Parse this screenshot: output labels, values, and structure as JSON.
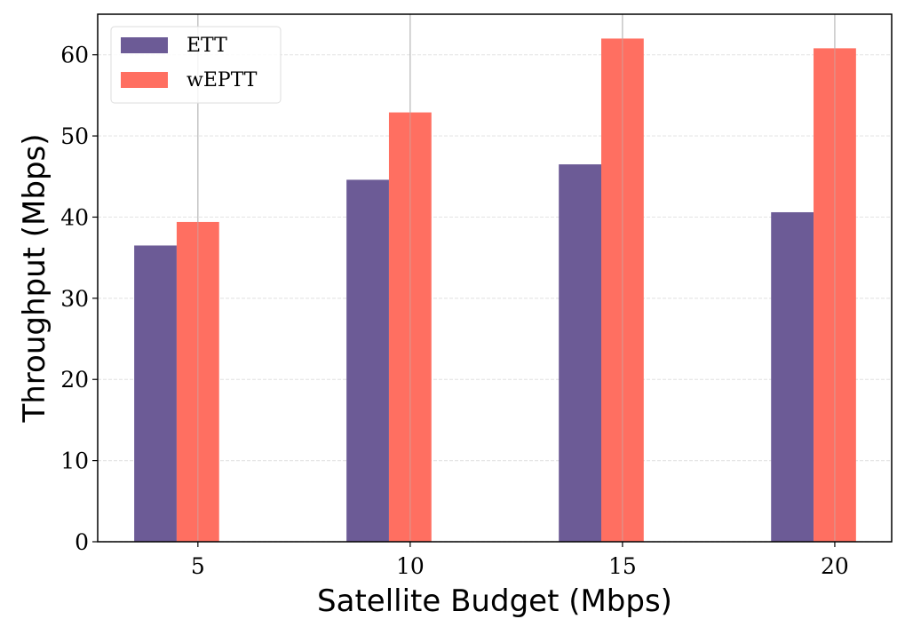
{
  "chart_data": {
    "type": "bar",
    "title": "",
    "xlabel": "Satellite Budget (Mbps)",
    "ylabel": "Throughput (Mbps)",
    "categories": [
      5,
      10,
      15,
      20
    ],
    "series": [
      {
        "name": "ETT",
        "color": "#6c5b96",
        "values": [
          36.5,
          44.6,
          46.5,
          40.6
        ]
      },
      {
        "name": "wEPTT",
        "color": "#ff6f61",
        "values": [
          39.4,
          52.9,
          62.0,
          60.8
        ]
      }
    ],
    "xlim": [
      2.64,
      21.34
    ],
    "ylim": [
      0,
      65
    ],
    "yticks": [
      0,
      10,
      20,
      30,
      40,
      50,
      60
    ],
    "xticks": [
      5,
      10,
      15,
      20
    ],
    "grid": true,
    "legend": "top-left"
  }
}
